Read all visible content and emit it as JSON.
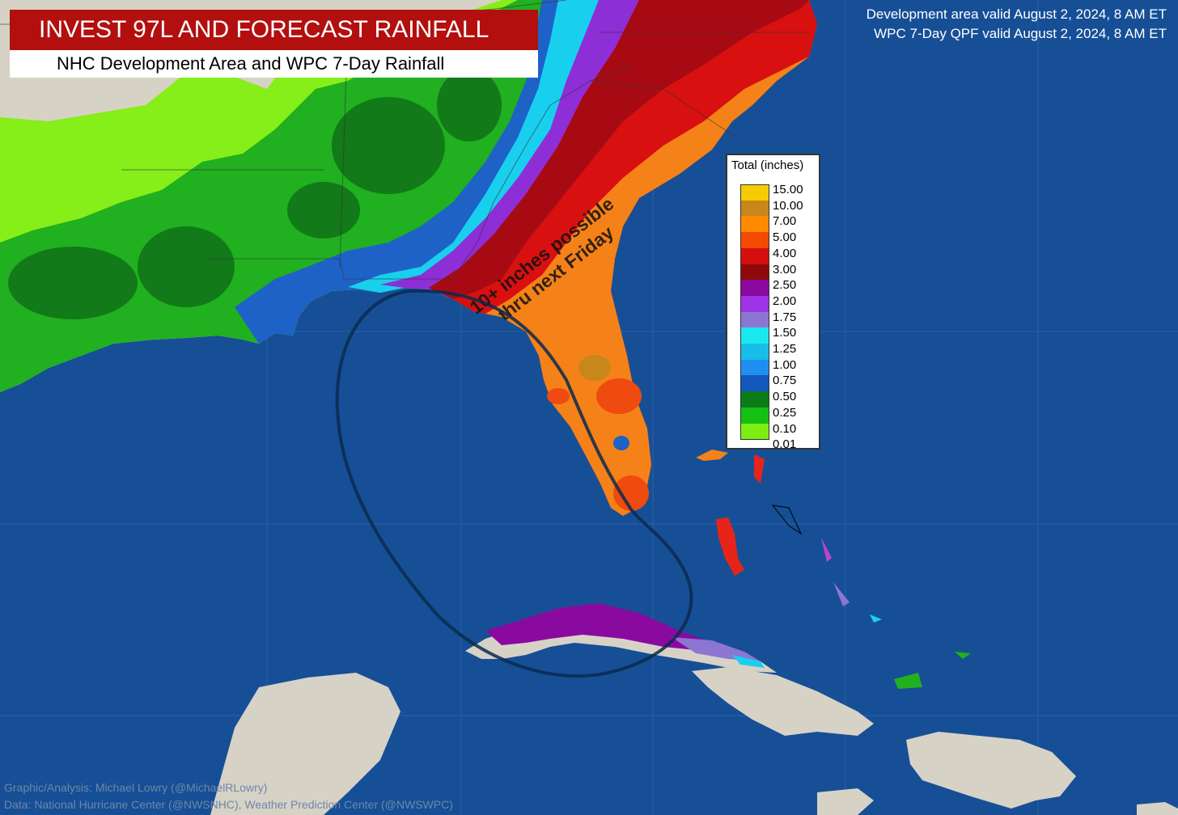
{
  "header": {
    "title": "INVEST 97L AND FORECAST RAINFALL",
    "subtitle": "NHC Development Area and WPC 7-Day Rainfall"
  },
  "validity": {
    "line1": "Development area valid August 2, 2024, 8 AM ET",
    "line2": "WPC 7-Day QPF valid August 2, 2024, 8 AM ET"
  },
  "legend": {
    "title": "Total (inches)",
    "items": [
      {
        "label": "15.00",
        "color": "#f6cc00"
      },
      {
        "label": "10.00",
        "color": "#c8871a"
      },
      {
        "label": "7.00",
        "color": "#ff8a00"
      },
      {
        "label": "5.00",
        "color": "#f24a00"
      },
      {
        "label": "4.00",
        "color": "#d50f0f"
      },
      {
        "label": "3.00",
        "color": "#8e0a0a"
      },
      {
        "label": "2.50",
        "color": "#8a0aa0"
      },
      {
        "label": "2.00",
        "color": "#9d34e8"
      },
      {
        "label": "1.75",
        "color": "#8d75d2"
      },
      {
        "label": "1.50",
        "color": "#19e9ee"
      },
      {
        "label": "1.25",
        "color": "#18bde8"
      },
      {
        "label": "1.00",
        "color": "#1e8ff0"
      },
      {
        "label": "0.75",
        "color": "#1258be"
      },
      {
        "label": "0.50",
        "color": "#0c7b18"
      },
      {
        "label": "0.25",
        "color": "#14c014"
      },
      {
        "label": "0.10",
        "color": "#7dee14"
      }
    ],
    "last_label": "0.01"
  },
  "annotation": {
    "line1": "10+ inches possible",
    "line2": "thru next Friday"
  },
  "credits": {
    "line1": "Graphic/Analysis: Michael Lowry (@MichaelRLowry)",
    "line2": "Data: National Hurricane Center (@NWSNHC), Weather Prediction Center (@NWSWPC)"
  },
  "colors": {
    "ocean": "#164f96",
    "land": "#d7d2c6",
    "title_bg": "#b30f0f",
    "development_area": "#0b2a4e"
  }
}
